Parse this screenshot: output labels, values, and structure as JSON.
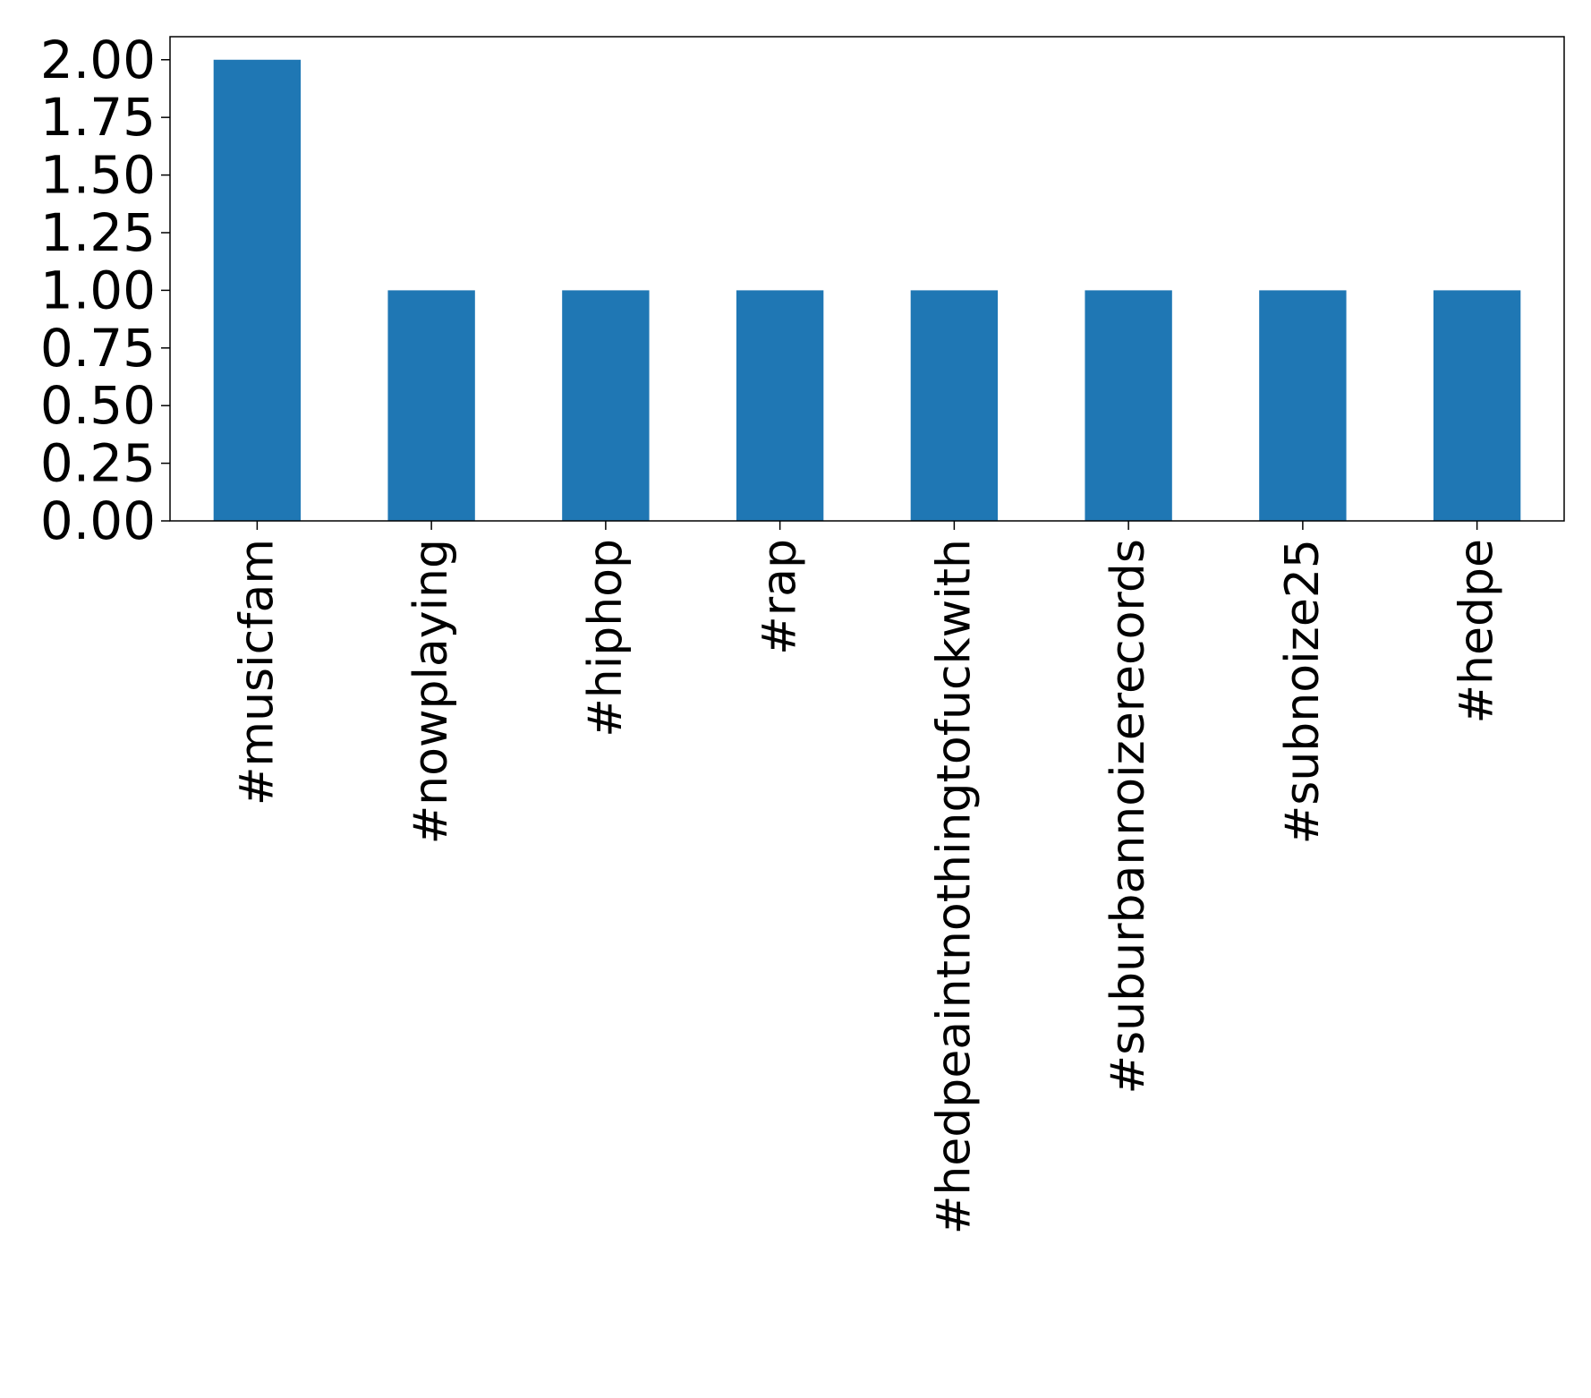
{
  "chart_data": {
    "type": "bar",
    "title": "",
    "xlabel": "",
    "ylabel": "",
    "categories": [
      "#musicfam",
      "#nowplaying",
      "#hiphop",
      "#rap",
      "#hedpeaintnothingtofuckwith",
      "#suburbannoizerecords",
      "#subnoize25",
      "#hedpe"
    ],
    "values": [
      2,
      1,
      1,
      1,
      1,
      1,
      1,
      1
    ],
    "ylim": [
      0,
      2.1
    ],
    "yticks": [
      "0.00",
      "0.25",
      "0.50",
      "0.75",
      "1.00",
      "1.25",
      "1.50",
      "1.75",
      "2.00"
    ],
    "grid": false,
    "legend": "none",
    "bar_color": "#1f77b4"
  }
}
